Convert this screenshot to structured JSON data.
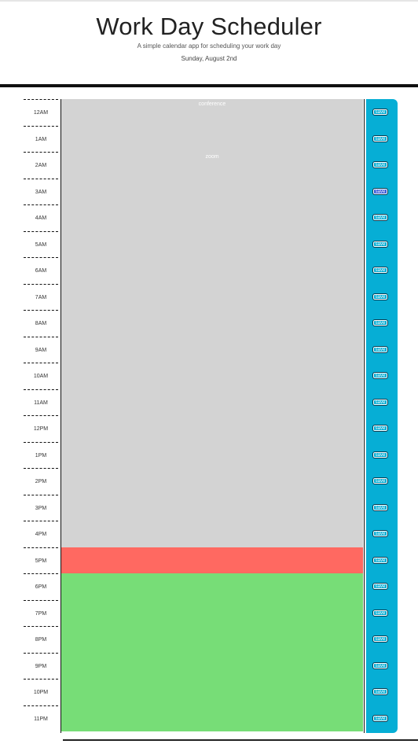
{
  "header": {
    "title": "Work Day Scheduler",
    "subtitle": "A simple calendar app for scheduling your work day",
    "current_day": "Sunday, August 2nd"
  },
  "save_label": "save",
  "colors": {
    "past": "#d3d3d3",
    "present": "#ff6961",
    "future": "#77dd77",
    "save_column": "#06aed5"
  },
  "hours": [
    {
      "label": "12AM",
      "status": "past",
      "text": "conference"
    },
    {
      "label": "1AM",
      "status": "past",
      "text": ""
    },
    {
      "label": "2AM",
      "status": "past",
      "text": "zoom"
    },
    {
      "label": "3AM",
      "status": "past",
      "text": ""
    },
    {
      "label": "4AM",
      "status": "past",
      "text": ""
    },
    {
      "label": "5AM",
      "status": "past",
      "text": ""
    },
    {
      "label": "6AM",
      "status": "past",
      "text": ""
    },
    {
      "label": "7AM",
      "status": "past",
      "text": ""
    },
    {
      "label": "8AM",
      "status": "past",
      "text": ""
    },
    {
      "label": "9AM",
      "status": "past",
      "text": ""
    },
    {
      "label": "10AM",
      "status": "past",
      "text": ""
    },
    {
      "label": "11AM",
      "status": "past",
      "text": ""
    },
    {
      "label": "12PM",
      "status": "past",
      "text": ""
    },
    {
      "label": "1PM",
      "status": "past",
      "text": ""
    },
    {
      "label": "2PM",
      "status": "past",
      "text": ""
    },
    {
      "label": "3PM",
      "status": "past",
      "text": ""
    },
    {
      "label": "4PM",
      "status": "past",
      "text": ""
    },
    {
      "label": "5PM",
      "status": "present",
      "text": ""
    },
    {
      "label": "6PM",
      "status": "future",
      "text": ""
    },
    {
      "label": "7PM",
      "status": "future",
      "text": ""
    },
    {
      "label": "8PM",
      "status": "future",
      "text": ""
    },
    {
      "label": "9PM",
      "status": "future",
      "text": ""
    },
    {
      "label": "10PM",
      "status": "future",
      "text": ""
    },
    {
      "label": "11PM",
      "status": "future",
      "text": ""
    }
  ]
}
